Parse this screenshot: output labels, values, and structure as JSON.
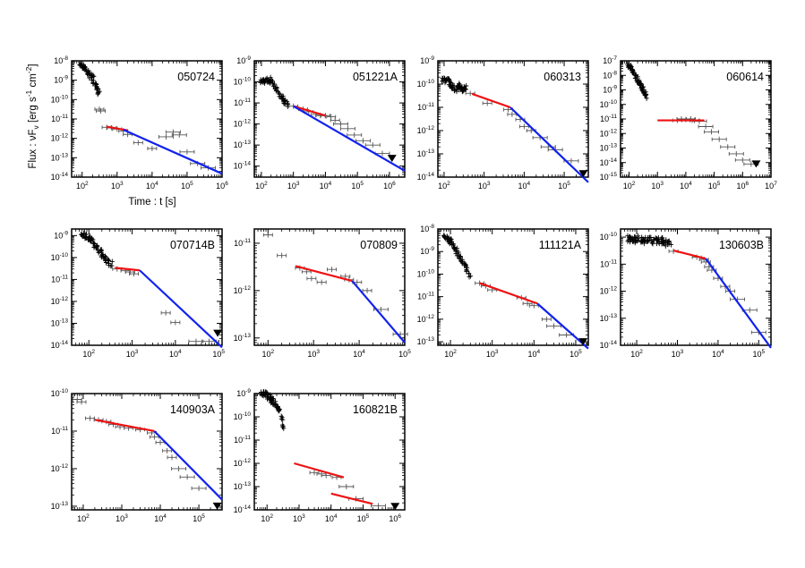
{
  "figure": {
    "ylabel_main": "Flux : νF",
    "ylabel_sub": "ν",
    "ylabel_unit": " [erg s",
    "ylabel_exp1": "-1",
    "ylabel_mid": " cm",
    "ylabel_exp2": "-2",
    "ylabel_end": "]",
    "xlabel": "Time : t [s]"
  },
  "colors": {
    "data": "#555555",
    "fit1": "#ee1111",
    "fit2": "#1122ee",
    "axis": "#000000"
  },
  "chart_data": [
    {
      "type": "scatter",
      "name": "050724",
      "xlim": [
        50,
        1000000
      ],
      "ylim": [
        1e-14,
        1e-08
      ],
      "xticks": [
        100,
        1000,
        10000,
        100000,
        1000000
      ],
      "yticks": [
        1e-14,
        1e-13,
        1e-12,
        1e-11,
        1e-10,
        1e-09,
        1e-08
      ],
      "dense": [
        [
          80,
          7e-09
        ],
        [
          110,
          5e-09
        ],
        [
          150,
          2.5e-09
        ],
        [
          200,
          1.2e-09
        ],
        [
          260,
          4e-10
        ],
        [
          300,
          2e-10
        ]
      ],
      "points": [
        [
          310,
          3.2e-11
        ],
        [
          340,
          2.6e-11
        ],
        [
          500,
          3.7e-12
        ],
        [
          700,
          3.5e-12
        ],
        [
          1000,
          3e-12
        ],
        [
          1500,
          2.4e-12
        ],
        [
          2000,
          1.6e-12
        ],
        [
          4000,
          6e-13
        ],
        [
          10000,
          3e-13
        ],
        [
          25000,
          1.2e-12
        ],
        [
          40000,
          2.1e-12
        ],
        [
          60000,
          1.5e-12
        ],
        [
          100000,
          2e-13
        ],
        [
          200000,
          5e-14
        ],
        [
          400000,
          3e-14
        ]
      ],
      "fits": [
        {
          "color": "red",
          "x": [
            500,
            2000
          ],
          "y": [
            4e-12,
            2.6e-12
          ]
        },
        {
          "color": "blue",
          "x": [
            1500,
            1000000
          ],
          "y": [
            2.8e-12,
            1.5e-14
          ]
        }
      ],
      "upper_limits": []
    },
    {
      "type": "scatter",
      "name": "051221A",
      "xlim": [
        60,
        3000000
      ],
      "ylim": [
        3e-15,
        1e-09
      ],
      "xticks": [
        100,
        1000,
        10000,
        100000,
        1000000
      ],
      "yticks": [
        1e-14,
        1e-13,
        1e-12,
        1e-11,
        1e-10,
        1e-09
      ],
      "dense": [
        [
          90,
          1.2e-10
        ],
        [
          130,
          1e-10
        ],
        [
          180,
          1.4e-10
        ],
        [
          250,
          7e-11
        ],
        [
          350,
          3e-11
        ],
        [
          500,
          1.2e-11
        ],
        [
          700,
          8e-12
        ]
      ],
      "points": [
        [
          1000,
          7e-12
        ],
        [
          2000,
          5e-12
        ],
        [
          3000,
          3.8e-12
        ],
        [
          5000,
          2.8e-12
        ],
        [
          7000,
          2.5e-12
        ],
        [
          10000,
          2.5e-12
        ],
        [
          15000,
          2.2e-12
        ],
        [
          20000,
          1.5e-12
        ],
        [
          30000,
          1e-12
        ],
        [
          50000,
          6e-13
        ],
        [
          80000,
          3e-13
        ],
        [
          150000,
          1.6e-13
        ],
        [
          300000,
          1e-13
        ],
        [
          600000,
          4e-14
        ]
      ],
      "fits": [
        {
          "color": "red",
          "x": [
            1000,
            10000
          ],
          "y": [
            7e-12,
            2.5e-12
          ]
        },
        {
          "color": "blue",
          "x": [
            1000,
            3000000
          ],
          "y": [
            7e-12,
            6e-15
          ]
        }
      ],
      "upper_limits": [
        [
          1200000,
          2.3e-14
        ]
      ]
    },
    {
      "type": "scatter",
      "name": "060313",
      "xlim": [
        70,
        400000
      ],
      "ylim": [
        1e-14,
        1e-09
      ],
      "xticks": [
        100,
        1000,
        10000,
        100000
      ],
      "yticks": [
        1e-14,
        1e-13,
        1e-12,
        1e-11,
        1e-10,
        1e-09
      ],
      "dense": [
        [
          90,
          1.4e-10
        ],
        [
          120,
          1.5e-10
        ],
        [
          150,
          8e-11
        ],
        [
          200,
          6e-11
        ],
        [
          250,
          8e-11
        ],
        [
          300,
          6e-11
        ],
        [
          350,
          7e-11
        ]
      ],
      "points": [
        [
          450,
          4e-11
        ],
        [
          1200,
          1.5e-11
        ],
        [
          4000,
          8e-12
        ],
        [
          5000,
          5e-12
        ],
        [
          8000,
          3e-12
        ],
        [
          10000,
          1.5e-12
        ],
        [
          15000,
          1e-12
        ],
        [
          25000,
          5e-13
        ],
        [
          40000,
          2e-13
        ],
        [
          60000,
          1.5e-13
        ],
        [
          150000,
          5e-14
        ]
      ],
      "fits": [
        {
          "color": "red",
          "x": [
            500,
            4500
          ],
          "y": [
            3.8e-11,
            1e-11
          ]
        },
        {
          "color": "blue",
          "x": [
            4500,
            400000
          ],
          "y": [
            1e-11,
            6e-15
          ]
        }
      ],
      "upper_limits": [
        [
          300000,
          1.4e-14
        ]
      ]
    },
    {
      "type": "scatter",
      "name": "060614",
      "xlim": [
        50,
        10000000
      ],
      "ylim": [
        1e-15,
        1e-07
      ],
      "xticks": [
        100,
        1000,
        10000,
        100000,
        1000000,
        10000000
      ],
      "yticks": [
        1e-15,
        1e-14,
        1e-13,
        1e-12,
        1e-11,
        1e-10,
        1e-09,
        1e-08,
        1e-07
      ],
      "dense": [
        [
          90,
          5e-08
        ],
        [
          120,
          3e-08
        ],
        [
          160,
          1.2e-08
        ],
        [
          220,
          4e-09
        ],
        [
          280,
          1.5e-09
        ],
        [
          350,
          6e-10
        ],
        [
          400,
          3e-10
        ]
      ],
      "points": [
        [
          5000,
          8e-12
        ],
        [
          7000,
          1e-11
        ],
        [
          10000,
          9e-12
        ],
        [
          15000,
          1e-11
        ],
        [
          20000,
          8e-12
        ],
        [
          30000,
          7e-12
        ],
        [
          50000,
          3e-12
        ],
        [
          80000,
          1.3e-12
        ],
        [
          150000,
          4e-13
        ],
        [
          300000,
          1.2e-13
        ],
        [
          600000,
          4e-14
        ],
        [
          1000000,
          1.5e-14
        ],
        [
          2000000,
          8e-15
        ]
      ],
      "fits": [
        {
          "color": "red",
          "x": [
            1000,
            45000
          ],
          "y": [
            8e-12,
            8e-12
          ]
        }
      ],
      "upper_limits": [
        [
          3000000,
          8e-15
        ]
      ]
    },
    {
      "type": "scatter",
      "name": "070714B",
      "xlim": [
        40,
        120000
      ],
      "ylim": [
        1e-14,
        2e-09
      ],
      "xticks": [
        100,
        1000,
        10000,
        100000
      ],
      "yticks": [
        1e-14,
        1e-13,
        1e-12,
        1e-11,
        1e-10,
        1e-09
      ],
      "dense": [
        [
          70,
          1.1e-09
        ],
        [
          90,
          9e-10
        ],
        [
          120,
          6e-10
        ],
        [
          150,
          3e-10
        ],
        [
          200,
          1.4e-10
        ],
        [
          260,
          7e-11
        ],
        [
          350,
          5e-11
        ]
      ],
      "points": [
        [
          450,
          3e-11
        ],
        [
          700,
          2.5e-11
        ],
        [
          900,
          2.2e-11
        ],
        [
          1100,
          1.8e-11
        ],
        [
          6000,
          3e-13
        ],
        [
          10000,
          1.1e-13
        ],
        [
          30000,
          1.5e-14
        ],
        [
          60000,
          1.5e-14
        ]
      ],
      "fits": [
        {
          "color": "red",
          "x": [
            400,
            1500
          ],
          "y": [
            3.4e-11,
            2.6e-11
          ]
        },
        {
          "color": "blue",
          "x": [
            1500,
            120000
          ],
          "y": [
            2.6e-11,
            8e-15
          ]
        }
      ],
      "upper_limits": [
        [
          95000,
          3.5e-14
        ]
      ]
    },
    {
      "type": "scatter",
      "name": "070809",
      "xlim": [
        50,
        100000
      ],
      "ylim": [
        7e-14,
        2e-11
      ],
      "xticks": [
        100,
        1000,
        10000,
        100000
      ],
      "yticks": [
        1e-13,
        1e-12,
        1e-11
      ],
      "dense": [],
      "points": [
        [
          100,
          1.5e-11
        ],
        [
          200,
          5.5e-12
        ],
        [
          500,
          3e-12
        ],
        [
          700,
          2.5e-12
        ],
        [
          900,
          1.8e-12
        ],
        [
          1500,
          1.5e-12
        ],
        [
          2500,
          2.8e-12
        ],
        [
          5000,
          2e-12
        ],
        [
          6000,
          1.7e-12
        ],
        [
          9000,
          1.5e-12
        ],
        [
          15000,
          1e-12
        ],
        [
          30000,
          4e-13
        ],
        [
          80000,
          1.2e-13
        ]
      ],
      "fits": [
        {
          "color": "red",
          "x": [
            400,
            7000
          ],
          "y": [
            3.3e-12,
            1.6e-12
          ]
        },
        {
          "color": "blue",
          "x": [
            7000,
            100000
          ],
          "y": [
            1.6e-12,
            8e-14
          ]
        }
      ],
      "upper_limits": []
    },
    {
      "type": "scatter",
      "name": "111121A",
      "xlim": [
        50,
        200000
      ],
      "ylim": [
        7e-14,
        1e-08
      ],
      "xticks": [
        100,
        1000,
        10000,
        100000
      ],
      "yticks": [
        1e-13,
        1e-12,
        1e-11,
        1e-10,
        1e-09,
        1e-08
      ],
      "dense": [
        [
          70,
          5e-09
        ],
        [
          90,
          3e-09
        ],
        [
          110,
          2.5e-09
        ],
        [
          140,
          1e-09
        ],
        [
          180,
          5e-10
        ],
        [
          230,
          2e-10
        ],
        [
          300,
          7e-11
        ]
      ],
      "points": [
        [
          500,
          4e-11
        ],
        [
          700,
          3e-11
        ],
        [
          1000,
          2e-11
        ],
        [
          5000,
          9e-12
        ],
        [
          7000,
          5e-12
        ],
        [
          10000,
          4e-12
        ],
        [
          20000,
          1e-12
        ],
        [
          30000,
          5e-13
        ],
        [
          60000,
          2e-13
        ]
      ],
      "fits": [
        {
          "color": "red",
          "x": [
            500,
            12000
          ],
          "y": [
            4e-11,
            5e-12
          ]
        },
        {
          "color": "blue",
          "x": [
            12000,
            200000
          ],
          "y": [
            5e-12,
            5e-14
          ]
        }
      ],
      "upper_limits": [
        [
          150000,
          1e-13
        ]
      ]
    },
    {
      "type": "scatter",
      "name": "130603B",
      "xlim": [
        40,
        200000
      ],
      "ylim": [
        1e-14,
        2e-10
      ],
      "xticks": [
        100,
        1000,
        10000,
        100000
      ],
      "yticks": [
        1e-14,
        1e-13,
        1e-12,
        1e-11,
        1e-10
      ],
      "dense": [
        [
          60,
          9e-11
        ],
        [
          80,
          8e-11
        ],
        [
          100,
          8.5e-11
        ],
        [
          150,
          7e-11
        ],
        [
          200,
          9e-11
        ],
        [
          300,
          7e-11
        ],
        [
          400,
          8e-11
        ],
        [
          500,
          6e-11
        ],
        [
          700,
          7e-11
        ]
      ],
      "points": [
        [
          800,
          3e-11
        ],
        [
          3000,
          1.8e-11
        ],
        [
          4500,
          1.5e-11
        ],
        [
          5000,
          1.2e-11
        ],
        [
          6000,
          8e-12
        ],
        [
          7000,
          6e-12
        ],
        [
          10000,
          3e-12
        ],
        [
          15000,
          1.5e-12
        ],
        [
          20000,
          1e-12
        ],
        [
          30000,
          5e-13
        ],
        [
          60000,
          2e-13
        ],
        [
          100000,
          3e-14
        ]
      ],
      "fits": [
        {
          "color": "red",
          "x": [
            800,
            5000
          ],
          "y": [
            3.2e-11,
            1.6e-11
          ]
        },
        {
          "color": "blue",
          "x": [
            5000,
            200000
          ],
          "y": [
            1.6e-11,
            8e-15
          ]
        }
      ],
      "upper_limits": []
    },
    {
      "type": "scatter",
      "name": "140903A",
      "xlim": [
        50,
        400000
      ],
      "ylim": [
        8e-14,
        1e-10
      ],
      "xticks": [
        100,
        1000,
        10000,
        100000
      ],
      "yticks": [
        1e-13,
        1e-12,
        1e-11,
        1e-10
      ],
      "dense": [],
      "points": [
        [
          70,
          7e-11
        ],
        [
          90,
          6e-11
        ],
        [
          150,
          2.2e-11
        ],
        [
          250,
          2e-11
        ],
        [
          400,
          1.8e-11
        ],
        [
          600,
          1.5e-11
        ],
        [
          900,
          1.3e-11
        ],
        [
          1500,
          1.2e-11
        ],
        [
          3000,
          1.1e-11
        ],
        [
          6000,
          9e-12
        ],
        [
          7000,
          7e-12
        ],
        [
          10000,
          5e-12
        ],
        [
          15000,
          3e-12
        ],
        [
          20000,
          2e-12
        ],
        [
          30000,
          1e-12
        ],
        [
          50000,
          6e-13
        ],
        [
          100000,
          3e-13
        ]
      ],
      "fits": [
        {
          "color": "red",
          "x": [
            200,
            7000
          ],
          "y": [
            2e-11,
            1e-11
          ]
        },
        {
          "color": "blue",
          "x": [
            7000,
            400000
          ],
          "y": [
            1e-11,
            1.5e-13
          ]
        }
      ],
      "upper_limits": [
        [
          300000,
          1e-13
        ]
      ]
    },
    {
      "type": "scatter",
      "name": "160821B",
      "xlim": [
        40,
        2000000
      ],
      "ylim": [
        1e-14,
        1e-09
      ],
      "xticks": [
        1000,
        10000,
        100000,
        1000000
      ],
      "xticks_extra": [
        100
      ],
      "yticks": [
        1e-14,
        1e-13,
        1e-12,
        1e-11,
        1e-10,
        1e-09
      ],
      "dense": [
        [
          70,
          1e-09
        ],
        [
          90,
          9e-10
        ],
        [
          120,
          7e-10
        ],
        [
          150,
          5e-10
        ],
        [
          200,
          3e-10
        ],
        [
          250,
          2e-10
        ],
        [
          350,
          2e-11
        ]
      ],
      "points": [
        [
          3000,
          4e-13
        ],
        [
          5000,
          3.5e-13
        ],
        [
          7000,
          3e-13
        ],
        [
          15000,
          2.5e-13
        ],
        [
          30000,
          1e-13
        ],
        [
          60000,
          3e-14
        ],
        [
          300000,
          1.5e-14
        ]
      ],
      "fits": [
        {
          "color": "red",
          "x": [
            700,
            25000
          ],
          "y": [
            1e-12,
            2.5e-13
          ]
        },
        {
          "color": "red",
          "x": [
            10000,
            200000
          ],
          "y": [
            5e-14,
            1.8e-14
          ]
        }
      ],
      "upper_limits": [
        [
          1000000,
          1.4e-14
        ]
      ]
    }
  ]
}
